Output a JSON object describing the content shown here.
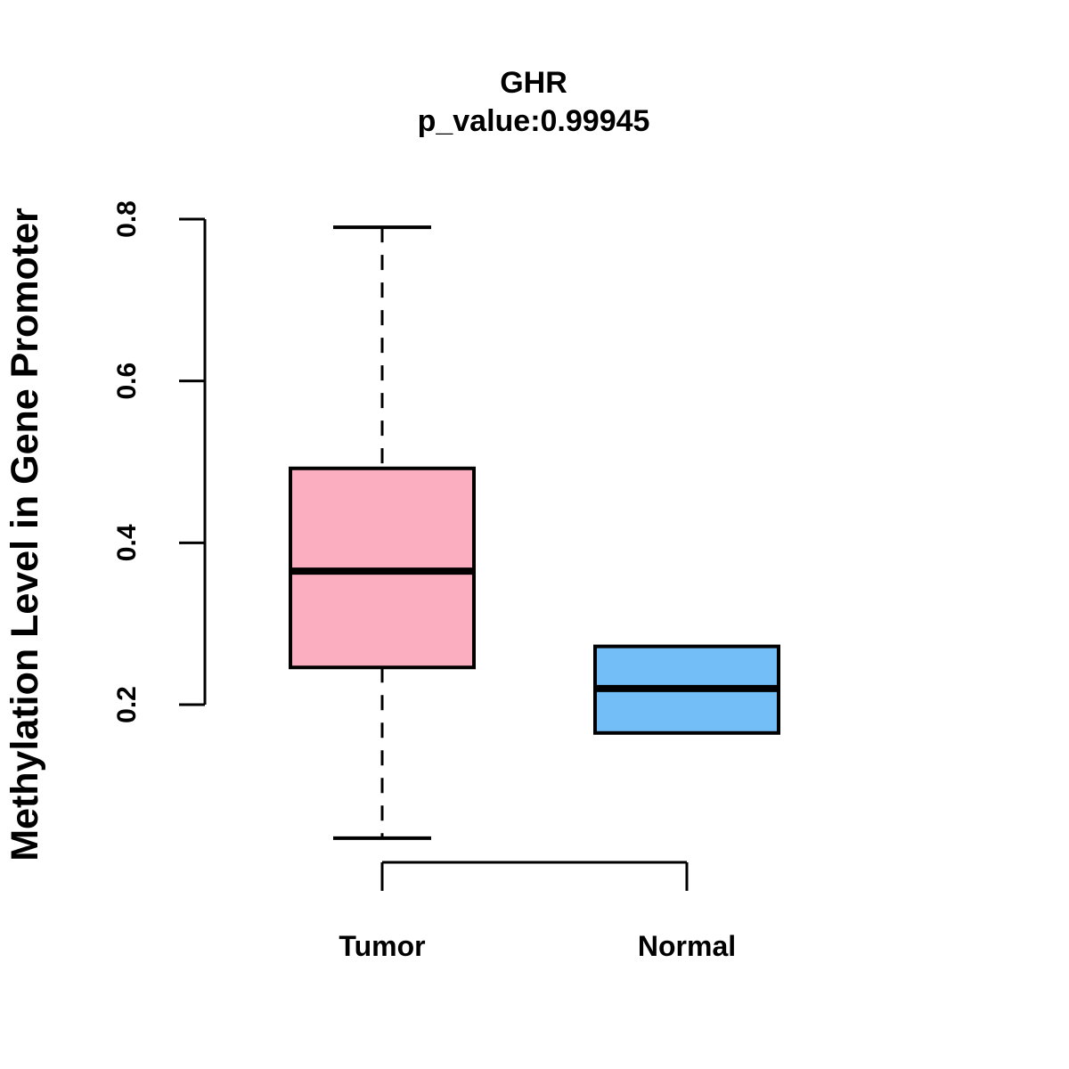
{
  "chart_data": {
    "type": "boxplot",
    "title": "GHR",
    "subtitle": "p_value:0.99945",
    "ylabel": "Methylation Level in Gene Promoter",
    "xlabel": "",
    "yticks": [
      0.2,
      0.4,
      0.6,
      0.8
    ],
    "ytick_labels": [
      "0.2",
      "0.4",
      "0.6",
      "0.8"
    ],
    "ylim": [
      0.0,
      0.82
    ],
    "y_axis_drawn_range": [
      0.2,
      0.8
    ],
    "grid": "off",
    "legend": "none",
    "groups": [
      {
        "label": "Tumor",
        "fill_color": "#FCAEC1",
        "stats": {
          "lower_whisker": 0.035,
          "q1": 0.246,
          "median": 0.365,
          "q3": 0.492,
          "upper_whisker": 0.79
        },
        "whiskers_visible": true
      },
      {
        "label": "Normal",
        "fill_color": "#74BEF7",
        "stats": {
          "lower_whisker": 0.165,
          "q1": 0.165,
          "median": 0.22,
          "q3": 0.272,
          "upper_whisker": 0.272
        },
        "whiskers_visible": false
      }
    ],
    "colors": {
      "box_border": "#000000",
      "median_line": "#000000",
      "axis": "#000000",
      "text": "#000000",
      "background": "#FFFFFF"
    }
  }
}
